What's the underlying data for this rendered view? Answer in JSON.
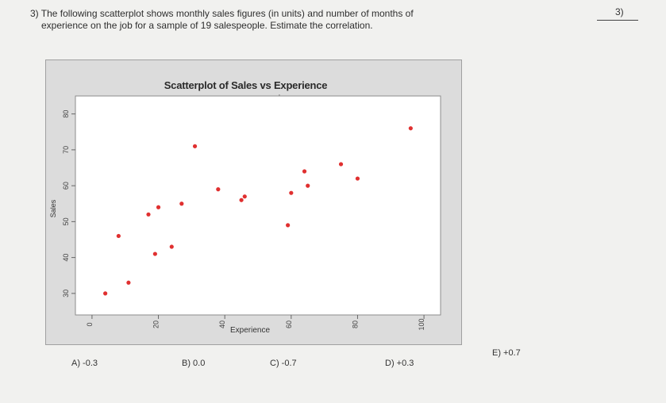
{
  "question": {
    "line1": "3) The following scatterplot shows monthly sales figures (in units) and number of months of",
    "line2": "experience on the job for a sample of 19 salespeople. Estimate the correlation."
  },
  "answer_label": "3)",
  "chart_data": {
    "type": "scatter",
    "title": "Scatterplot of Sales vs Experience",
    "xlabel": "Experience",
    "ylabel": "Sales",
    "xlim": [
      -5,
      105
    ],
    "ylim": [
      24,
      85
    ],
    "x_ticks": [
      "0",
      "20",
      "40",
      "60",
      "80",
      "100"
    ],
    "y_ticks": [
      "30",
      "40",
      "50",
      "60",
      "70",
      "80"
    ],
    "x_tick_values": [
      0,
      20,
      40,
      60,
      80,
      100
    ],
    "y_tick_values": [
      30,
      40,
      50,
      60,
      70,
      80
    ],
    "marker_color": "#e03030",
    "grid": false,
    "x": [
      4,
      8,
      11,
      17,
      19,
      20,
      24,
      27,
      31,
      38,
      45,
      46,
      59,
      60,
      64,
      65,
      75,
      80,
      96
    ],
    "y": [
      30,
      46,
      33,
      52,
      41,
      54,
      43,
      55,
      71,
      59,
      56,
      57,
      49,
      58,
      64,
      60,
      66,
      62,
      76
    ]
  },
  "choices": {
    "a": "A) -0.3",
    "b": "B) 0.0",
    "c": "C) -0.7",
    "d": "D) +0.3",
    "e": "E) +0.7"
  }
}
